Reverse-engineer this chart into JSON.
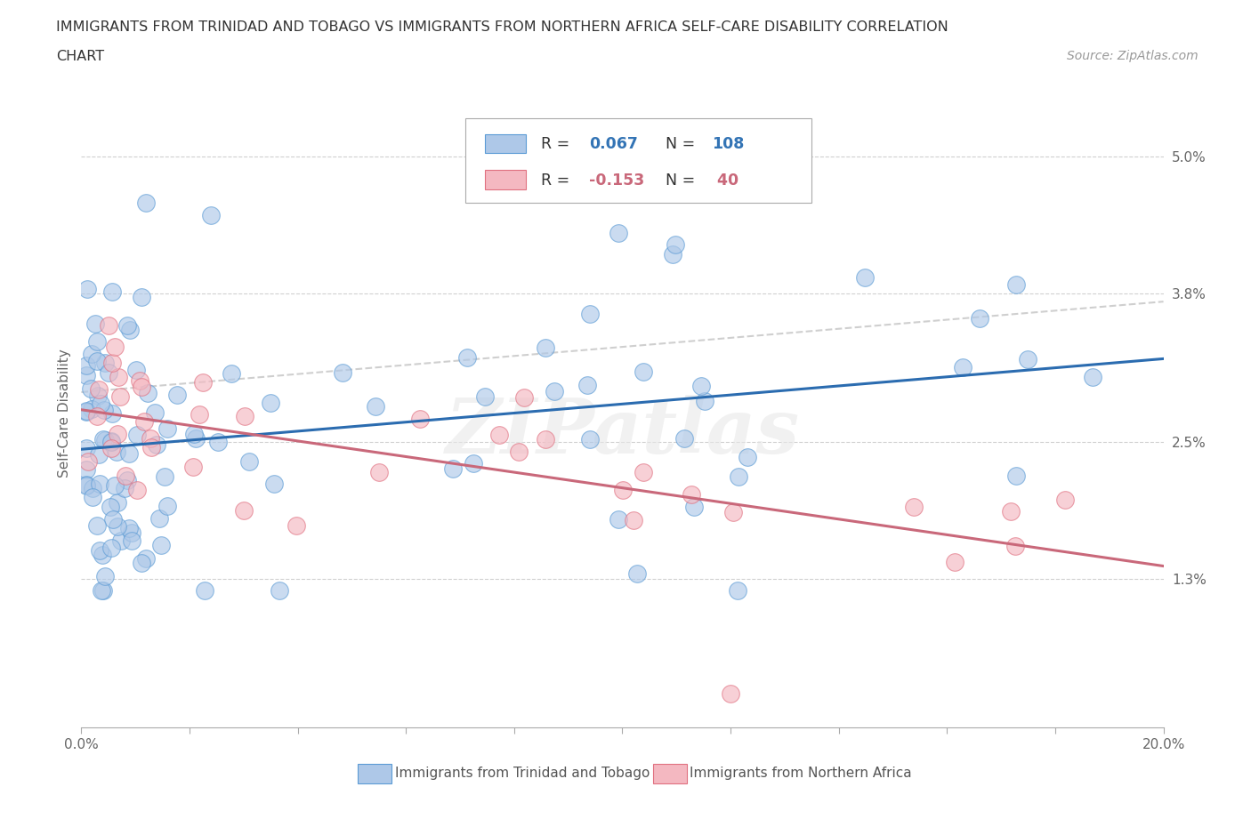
{
  "title_line1": "IMMIGRANTS FROM TRINIDAD AND TOBAGO VS IMMIGRANTS FROM NORTHERN AFRICA SELF-CARE DISABILITY CORRELATION",
  "title_line2": "CHART",
  "source": "Source: ZipAtlas.com",
  "ylabel": "Self-Care Disability",
  "xlim": [
    0.0,
    0.2
  ],
  "ylim": [
    0.0,
    0.055
  ],
  "xtick_positions": [
    0.0,
    0.02,
    0.04,
    0.06,
    0.08,
    0.1,
    0.12,
    0.14,
    0.16,
    0.18,
    0.2
  ],
  "xtick_labels": [
    "0.0%",
    "",
    "",
    "",
    "",
    "",
    "",
    "",
    "",
    "",
    "20.0%"
  ],
  "ytick_positions": [
    0.013,
    0.025,
    0.038,
    0.05
  ],
  "ytick_labels": [
    "1.3%",
    "2.5%",
    "3.8%",
    "5.0%"
  ],
  "series1_color": "#aec8e8",
  "series1_edge": "#5b9bd5",
  "series2_color": "#f4b8c1",
  "series2_edge": "#e07080",
  "series1_R": 0.067,
  "series1_N": 108,
  "series2_R": -0.153,
  "series2_N": 40,
  "legend_label1": "Immigrants from Trinidad and Tobago",
  "legend_label2": "Immigrants from Northern Africa",
  "trendline1_color": "#2b6cb0",
  "trendline2_color": "#c9687a",
  "trendline_dashed_color": "#bbbbbb",
  "watermark": "ZIPatlas",
  "background_color": "#ffffff",
  "legend_R_N_color": "#3374b5",
  "legend_R2_N2_color": "#c9687a"
}
